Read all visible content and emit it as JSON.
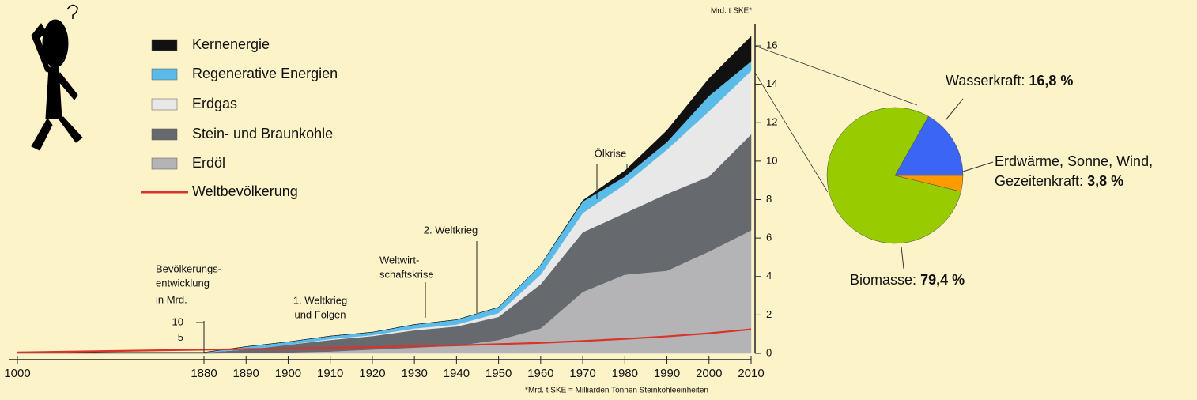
{
  "chart_data": [
    {
      "type": "area",
      "stacked": true,
      "y_label": "Mrd. t SKE*",
      "footnote": "*Mrd. t SKE = Milliarden Tonnen Steinkohleeinheiten",
      "y2_label": [
        "Bevölkerungs-",
        "entwicklung",
        "in Mrd."
      ],
      "annotations": [
        [
          "Ölkrise"
        ],
        [
          "2. Weltkrieg"
        ],
        [
          "Weltwirt-",
          "schaftskrise"
        ],
        [
          "1. Weltkrieg",
          "und Folgen"
        ]
      ],
      "x": [
        1000,
        1880,
        1890,
        1900,
        1910,
        1920,
        1930,
        1940,
        1950,
        1960,
        1970,
        1980,
        1990,
        2000,
        2010
      ],
      "xlim": [
        1000,
        2010
      ],
      "xticks": [
        1000,
        1880,
        1890,
        1900,
        1910,
        1920,
        1930,
        1940,
        1950,
        1960,
        1970,
        1980,
        1990,
        2000,
        2010
      ],
      "ylim": [
        0,
        16
      ],
      "yticks": [
        0,
        2,
        4,
        6,
        8,
        10,
        12,
        14,
        16
      ],
      "y2lim": [
        0,
        10
      ],
      "y2ticks": [
        5,
        10
      ],
      "series": [
        {
          "name": "Kernenergie",
          "color": "#111111",
          "values": [
            0,
            0,
            0,
            0,
            0,
            0,
            0,
            0,
            0,
            0,
            0.05,
            0.3,
            0.6,
            0.9,
            1.3
          ]
        },
        {
          "name": "Regenerative Energien",
          "color": "#5bbbe8",
          "values": [
            0,
            0,
            0.15,
            0.15,
            0.15,
            0.15,
            0.2,
            0.25,
            0.3,
            0.5,
            0.6,
            0.4,
            0.4,
            0.8,
            0.5
          ]
        },
        {
          "name": "Erdgas",
          "color": "#e8e8e8",
          "values": [
            0,
            0,
            0,
            0,
            0.05,
            0.05,
            0.1,
            0.1,
            0.2,
            0.5,
            1.0,
            1.5,
            2.3,
            3.4,
            3.3
          ]
        },
        {
          "name": "Stein- und Braunkohle",
          "color": "#66696d",
          "values": [
            0.05,
            0.05,
            0.18,
            0.4,
            0.6,
            0.7,
            0.9,
            1.0,
            1.2,
            2.3,
            3.1,
            3.2,
            4.0,
            3.9,
            5.0
          ]
        },
        {
          "name": "Erdöl",
          "color": "#b4b4b6",
          "values": [
            0,
            0,
            0.02,
            0.05,
            0.1,
            0.2,
            0.3,
            0.4,
            0.7,
            1.3,
            3.2,
            4.1,
            4.3,
            5.3,
            6.4
          ]
        },
        {
          "name": "Weltbevölkerung",
          "type": "line",
          "axis": "y2",
          "color": "#d9342b",
          "values": [
            0.3,
            1.2,
            1.4,
            1.6,
            1.8,
            2.0,
            2.3,
            2.6,
            3.0,
            3.4,
            4.0,
            4.7,
            5.5,
            6.5,
            7.8
          ]
        }
      ]
    },
    {
      "type": "pie",
      "categories": [
        [
          "Wasserkraft:"
        ],
        [
          "Erdwärme, Sonne, Wind,",
          "Gezeitenkraft:"
        ],
        [
          "Biomasse:"
        ]
      ],
      "values": [
        16.8,
        3.8,
        79.4
      ],
      "value_labels": [
        "16,8 %",
        "3,8 %",
        "79,4 %"
      ],
      "colors": [
        "#3b66f5",
        "#ff9a00",
        "#99cc00"
      ]
    }
  ]
}
